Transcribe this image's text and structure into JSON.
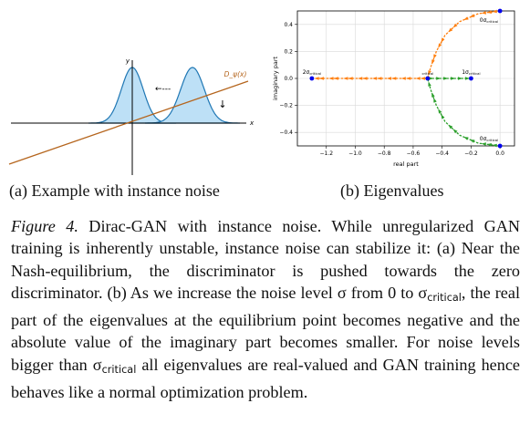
{
  "panel_a": {
    "y_axis_label": "y",
    "x_axis_label": "x",
    "discriminator_label": "D_ψ(x)",
    "left_arrow": "←---",
    "down_arrow": "↓"
  },
  "chart_data": {
    "type": "scatter",
    "xlabel": "real part",
    "ylabel": "imaginary part",
    "xlim": [
      -1.4,
      0.1
    ],
    "ylim": [
      -0.5,
      0.5
    ],
    "xticks": [
      "−1.2",
      "−1.0",
      "−0.8",
      "−0.6",
      "−0.4",
      "−0.2",
      "0.0"
    ],
    "yticks": [
      "0.4",
      "0.2",
      "0.0",
      "−0.2",
      "−0.4"
    ],
    "grid": true,
    "endpoints": [
      {
        "x": 0.0,
        "y": 0.5,
        "label_prefix": "0σ",
        "label_sub": "critical"
      },
      {
        "x": 0.0,
        "y": -0.5,
        "label_prefix": "0σ",
        "label_sub": "critical"
      },
      {
        "x": -0.2,
        "y": 0.0,
        "label_prefix": "1σ",
        "label_sub": "critical"
      },
      {
        "x": -0.5,
        "y": 0.0,
        "label_prefix": "",
        "label_sub": "critical"
      },
      {
        "x": -1.3,
        "y": 0.0,
        "label_prefix": "2σ",
        "label_sub": "critical"
      }
    ],
    "series": [
      {
        "color": "#ff7f0e",
        "points": [
          [
            0.0,
            0.5
          ],
          [
            -0.15,
            0.48
          ],
          [
            -0.28,
            0.42
          ],
          [
            -0.38,
            0.32
          ],
          [
            -0.44,
            0.2
          ],
          [
            -0.48,
            0.08
          ],
          [
            -0.5,
            0.0
          ],
          [
            -0.6,
            0.0
          ],
          [
            -0.7,
            0.0
          ],
          [
            -0.8,
            0.0
          ],
          [
            -0.9,
            0.0
          ],
          [
            -1.0,
            0.0
          ],
          [
            -1.1,
            0.0
          ],
          [
            -1.2,
            0.0
          ],
          [
            -1.3,
            0.0
          ]
        ]
      },
      {
        "color": "#2ca02c",
        "points": [
          [
            0.0,
            -0.5
          ],
          [
            -0.15,
            -0.48
          ],
          [
            -0.28,
            -0.42
          ],
          [
            -0.38,
            -0.32
          ],
          [
            -0.44,
            -0.2
          ],
          [
            -0.48,
            -0.08
          ],
          [
            -0.5,
            0.0
          ],
          [
            -0.45,
            0.0
          ],
          [
            -0.4,
            0.0
          ],
          [
            -0.35,
            0.0
          ],
          [
            -0.3,
            0.0
          ],
          [
            -0.25,
            0.0
          ],
          [
            -0.2,
            0.0
          ]
        ]
      }
    ]
  },
  "subcaption_a": "(a) Example with instance noise",
  "subcaption_b": "(b) Eigenvalues",
  "caption": {
    "fig_label": "Figure 4.",
    "p1": " Dirac-GAN with instance noise.  While unregularized GAN training is inherently unstable, instance noise can stabilize it: (a) Near the Nash-equilibrium, the discriminator is pushed towards the zero discriminator. (b) As we increase the noise level σ from 0 to σ",
    "sub1": "critical",
    "p2": ", the real part of the eigenvalues at the equilibrium point becomes negative and the absolute value of the imaginary part becomes smaller.  For noise levels bigger than σ",
    "sub2": "critical",
    "p3": " all eigenvalues are real-valued and GAN training hence behaves like a normal optimization problem."
  }
}
